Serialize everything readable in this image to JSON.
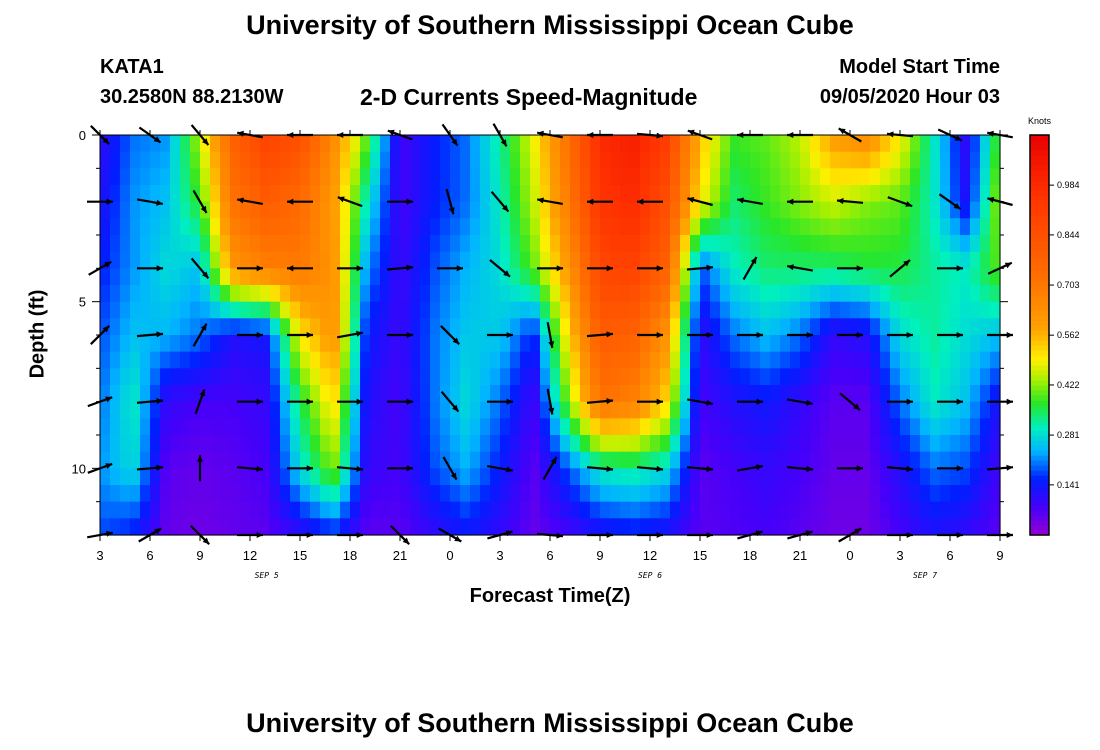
{
  "header": {
    "title": "University of Southern Mississippi Ocean Cube",
    "station": "KATA1",
    "coordinates": "30.2580N 88.2130W",
    "subtitle": "2-D Currents Speed-Magnitude",
    "model_start_label": "Model Start Time",
    "model_start_value": "09/05/2020 Hour 03"
  },
  "footer": {
    "title": "University of Southern Mississippi Ocean Cube"
  },
  "chart_data": {
    "type": "heatmap",
    "title": "2-D Currents Speed-Magnitude",
    "xlabel": "Forecast Time(Z)",
    "ylabel": "Depth (ft)",
    "x_hours_range": [
      0,
      54
    ],
    "x_ticks": [
      {
        "h": 0,
        "label": "3"
      },
      {
        "h": 3,
        "label": "6"
      },
      {
        "h": 6,
        "label": "9"
      },
      {
        "h": 9,
        "label": "12"
      },
      {
        "h": 12,
        "label": "15"
      },
      {
        "h": 15,
        "label": "18"
      },
      {
        "h": 18,
        "label": "21"
      },
      {
        "h": 21,
        "label": "0"
      },
      {
        "h": 24,
        "label": "3"
      },
      {
        "h": 27,
        "label": "6"
      },
      {
        "h": 30,
        "label": "9"
      },
      {
        "h": 33,
        "label": "12"
      },
      {
        "h": 36,
        "label": "15"
      },
      {
        "h": 39,
        "label": "18"
      },
      {
        "h": 42,
        "label": "21"
      },
      {
        "h": 45,
        "label": "0"
      },
      {
        "h": 48,
        "label": "3"
      },
      {
        "h": 51,
        "label": "6"
      },
      {
        "h": 54,
        "label": "9"
      }
    ],
    "day_labels": [
      {
        "h": 10,
        "label": "SEP 5"
      },
      {
        "h": 33,
        "label": "SEP 6"
      },
      {
        "h": 49.5,
        "label": "SEP 7"
      }
    ],
    "y_range": [
      0,
      12
    ],
    "y_ticks": [
      0,
      5,
      10
    ],
    "depths": [
      0,
      2,
      4,
      6,
      8,
      10,
      12
    ],
    "times": [
      0,
      2,
      4,
      6,
      8,
      10,
      12,
      14,
      16,
      18,
      20,
      22,
      24,
      26,
      28,
      30,
      32,
      34,
      36,
      38,
      40,
      42,
      44,
      46,
      48,
      50,
      52,
      54
    ],
    "speed_knots": [
      [
        0.1,
        0.2,
        0.22,
        0.45,
        0.78,
        0.9,
        0.85,
        0.65,
        0.4,
        0.08,
        0.15,
        0.2,
        0.32,
        0.48,
        0.72,
        0.98,
        1.02,
        0.92,
        0.55,
        0.38,
        0.4,
        0.45,
        0.6,
        0.65,
        0.5,
        0.3,
        0.1,
        0.4
      ],
      [
        0.12,
        0.22,
        0.25,
        0.38,
        0.72,
        0.8,
        0.75,
        0.6,
        0.3,
        0.08,
        0.15,
        0.2,
        0.3,
        0.45,
        0.68,
        0.95,
        0.98,
        0.85,
        0.5,
        0.34,
        0.38,
        0.42,
        0.46,
        0.42,
        0.4,
        0.3,
        0.12,
        0.45
      ],
      [
        0.15,
        0.22,
        0.28,
        0.25,
        0.62,
        0.68,
        0.7,
        0.62,
        0.22,
        0.09,
        0.18,
        0.24,
        0.28,
        0.4,
        0.6,
        0.88,
        0.9,
        0.78,
        0.18,
        0.3,
        0.34,
        0.34,
        0.34,
        0.36,
        0.36,
        0.32,
        0.3,
        0.4
      ],
      [
        0.18,
        0.25,
        0.24,
        0.2,
        0.12,
        0.14,
        0.5,
        0.62,
        0.15,
        0.09,
        0.2,
        0.26,
        0.26,
        0.15,
        0.5,
        0.8,
        0.78,
        0.62,
        0.1,
        0.2,
        0.25,
        0.2,
        0.1,
        0.12,
        0.28,
        0.32,
        0.28,
        0.25
      ],
      [
        0.2,
        0.3,
        0.1,
        0.08,
        0.08,
        0.1,
        0.35,
        0.52,
        0.12,
        0.08,
        0.2,
        0.28,
        0.2,
        0.08,
        0.4,
        0.72,
        0.68,
        0.52,
        0.08,
        0.12,
        0.14,
        0.1,
        0.06,
        0.06,
        0.2,
        0.3,
        0.25,
        0.12
      ],
      [
        0.22,
        0.28,
        0.06,
        0.05,
        0.06,
        0.08,
        0.28,
        0.42,
        0.1,
        0.08,
        0.18,
        0.24,
        0.15,
        0.06,
        0.18,
        0.3,
        0.32,
        0.28,
        0.06,
        0.08,
        0.1,
        0.08,
        0.05,
        0.05,
        0.12,
        0.2,
        0.18,
        0.08
      ],
      [
        0.18,
        0.15,
        0.05,
        0.04,
        0.05,
        0.06,
        0.1,
        0.15,
        0.06,
        0.06,
        0.1,
        0.14,
        0.1,
        0.05,
        0.08,
        0.12,
        0.14,
        0.12,
        0.06,
        0.07,
        0.08,
        0.06,
        0.04,
        0.04,
        0.08,
        0.12,
        0.1,
        0.06
      ]
    ],
    "vector_times": [
      0,
      3,
      6,
      9,
      12,
      15,
      18,
      21,
      24,
      27,
      30,
      33,
      36,
      39,
      42,
      45,
      48,
      51,
      54
    ],
    "vector_depths": [
      0,
      2,
      4,
      6,
      8,
      10,
      12
    ],
    "vector_direction_deg": [
      [
        -45,
        -35,
        -50,
        170,
        180,
        180,
        160,
        -55,
        -60,
        170,
        180,
        -5,
        160,
        180,
        180,
        150,
        175,
        -25,
        170
      ],
      [
        0,
        -10,
        -60,
        170,
        180,
        160,
        0,
        -75,
        -50,
        170,
        180,
        180,
        165,
        170,
        180,
        175,
        -20,
        -35,
        165
      ],
      [
        30,
        0,
        -50,
        0,
        180,
        0,
        5,
        0,
        -40,
        0,
        0,
        0,
        5,
        60,
        170,
        0,
        40,
        0,
        25
      ],
      [
        45,
        5,
        60,
        0,
        0,
        10,
        0,
        -45,
        0,
        -80,
        5,
        0,
        0,
        0,
        0,
        0,
        0,
        0,
        0
      ],
      [
        20,
        5,
        70,
        0,
        0,
        0,
        0,
        -50,
        0,
        -80,
        5,
        0,
        -10,
        0,
        -10,
        -40,
        0,
        0,
        0
      ],
      [
        20,
        5,
        90,
        -5,
        0,
        -5,
        0,
        -60,
        -10,
        60,
        -5,
        -5,
        -5,
        10,
        -5,
        0,
        -5,
        0,
        5
      ],
      [
        10,
        30,
        -45,
        0,
        0,
        0,
        -45,
        -30,
        15,
        -5,
        0,
        0,
        0,
        15,
        15,
        30,
        0,
        0,
        0
      ]
    ],
    "colorbar": {
      "label": "Knots",
      "range": [
        0.0,
        1.125
      ],
      "ticks": [
        0.141,
        0.281,
        0.422,
        0.562,
        0.703,
        0.844,
        0.984
      ]
    }
  }
}
